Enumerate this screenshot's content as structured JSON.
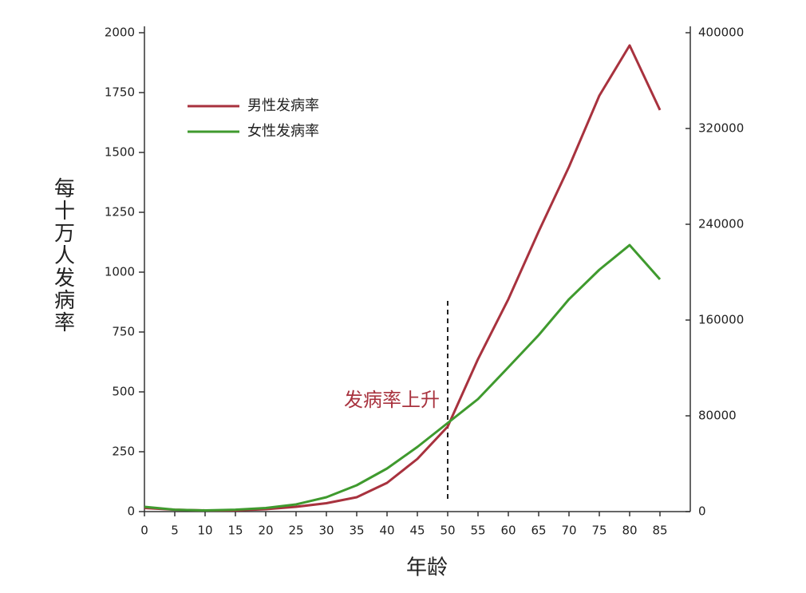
{
  "chart_data": {
    "type": "line",
    "x": [
      0,
      5,
      10,
      15,
      20,
      25,
      30,
      35,
      40,
      45,
      50,
      55,
      60,
      65,
      70,
      75,
      80,
      85
    ],
    "xlim": [
      0,
      90
    ],
    "xticks": [
      0,
      5,
      10,
      15,
      20,
      25,
      30,
      35,
      40,
      45,
      50,
      55,
      60,
      65,
      70,
      75,
      80,
      85
    ],
    "ylim": [
      0,
      2000
    ],
    "yticks": [
      0,
      250,
      500,
      750,
      1000,
      1250,
      1500,
      1750,
      2000
    ],
    "y2lim": [
      0,
      400000
    ],
    "y2ticks": [
      0,
      80000,
      160000,
      240000,
      320000,
      400000
    ],
    "xlabel": "年龄",
    "ylabel": "每十万人发病率",
    "legend": "upper left",
    "series": [
      {
        "name": "男性发病率",
        "color": "#a8323e",
        "values": [
          15,
          8,
          5,
          5,
          10,
          20,
          35,
          60,
          120,
          220,
          355,
          637,
          887,
          1170,
          1440,
          1737,
          1947,
          1677
        ]
      },
      {
        "name": "女性发病率",
        "color": "#3f9a2e",
        "values": [
          20,
          8,
          5,
          8,
          15,
          30,
          60,
          110,
          180,
          270,
          370,
          470,
          603,
          737,
          887,
          1010,
          1113,
          970
        ]
      }
    ],
    "annotation": {
      "text": "发病率上升",
      "x": 50,
      "color": "#a8323e"
    }
  }
}
